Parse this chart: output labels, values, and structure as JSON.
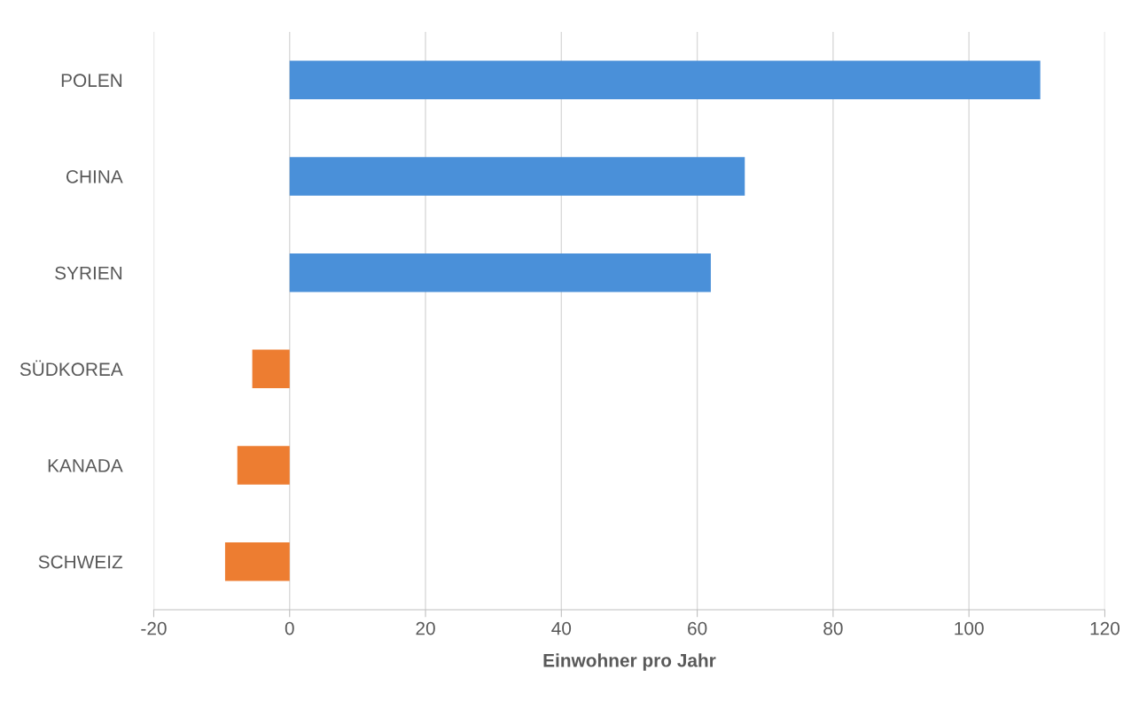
{
  "chart_data": {
    "type": "bar",
    "orientation": "horizontal",
    "categories": [
      "POLEN",
      "CHINA",
      "SYRIEN",
      "SÜDKOREA",
      "KANADA",
      "SCHWEIZ"
    ],
    "values": [
      110.5,
      67,
      62,
      -5.5,
      -7.7,
      -9.5
    ],
    "colors": [
      "#4a90d9",
      "#4a90d9",
      "#4a90d9",
      "#ed7d31",
      "#ed7d31",
      "#ed7d31"
    ],
    "xlabel": "Einwohner pro Jahr",
    "xlim": [
      -20,
      120
    ],
    "xticks": [
      -20,
      0,
      20,
      40,
      60,
      80,
      100,
      120
    ],
    "grid": "x"
  }
}
